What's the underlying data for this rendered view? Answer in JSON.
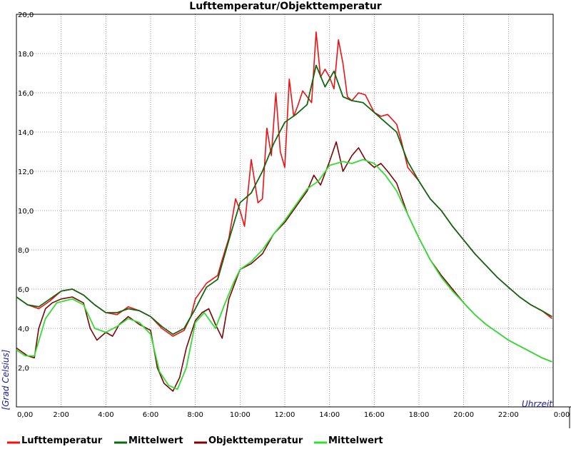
{
  "colors": {
    "luft": "#ee1111",
    "mittel_luft": "#116611",
    "objekt": "#7a0505",
    "mittel_objekt": "#33dd33",
    "axis_label": "#1a1aa0"
  },
  "chart_data": {
    "type": "line",
    "title": "Lufttemperatur/Objekttemperatur",
    "xlabel": "Uhrzeit",
    "ylabel": "[Grad Celsius]",
    "xlim": [
      0,
      24
    ],
    "ylim": [
      0,
      20
    ],
    "x_ticks": [
      "0,00",
      "2:00",
      "4:00",
      "6:00",
      "8:00",
      "10:00",
      "12:00",
      "14:00",
      "16:00",
      "18:00",
      "20:00",
      "22:00",
      "0:00"
    ],
    "y_ticks": [
      "2,0",
      "4,0",
      "6,0",
      "8,0",
      "10,0",
      "12,0",
      "14,0",
      "16,0",
      "18,0",
      "20,0"
    ],
    "grid": true,
    "legend_position": "bottom",
    "series": [
      {
        "name": "Lufttemperatur",
        "color": "#ee1111",
        "x": [
          0,
          0.5,
          1,
          1.5,
          2,
          2.5,
          3,
          3.5,
          4,
          4.5,
          5,
          5.5,
          6,
          6.5,
          7,
          7.5,
          7.8,
          8,
          8.5,
          9,
          9.2,
          9.5,
          9.8,
          10,
          10.2,
          10.5,
          10.8,
          11,
          11.2,
          11.4,
          11.6,
          11.8,
          12,
          12.2,
          12.4,
          12.6,
          12.8,
          13,
          13.2,
          13.4,
          13.6,
          13.8,
          14,
          14.2,
          14.4,
          14.6,
          14.8,
          15,
          15.3,
          15.6,
          16,
          16.3,
          16.6,
          17,
          17.2,
          17.5,
          18,
          18.5,
          19,
          19.5,
          20,
          20.5,
          21,
          21.5,
          22,
          22.5,
          23,
          23.5,
          23.95
        ],
        "values": [
          5.6,
          5.2,
          5.0,
          5.4,
          5.9,
          6.0,
          5.7,
          5.2,
          4.8,
          4.7,
          5.1,
          4.9,
          4.6,
          4.0,
          3.6,
          3.9,
          4.6,
          5.5,
          6.3,
          6.7,
          7.5,
          8.6,
          10.6,
          10.0,
          9.2,
          12.6,
          10.4,
          10.6,
          14.2,
          12.8,
          16.0,
          13.0,
          12.2,
          16.7,
          14.8,
          15.4,
          16.1,
          15.8,
          15.5,
          19.1,
          16.8,
          17.2,
          16.8,
          16.2,
          18.7,
          17.5,
          15.8,
          15.6,
          16.0,
          15.9,
          15.0,
          14.8,
          14.9,
          14.4,
          13.6,
          12.2,
          11.5,
          10.6,
          10.0,
          9.2,
          8.5,
          7.8,
          7.2,
          6.6,
          6.1,
          5.6,
          5.2,
          4.9,
          4.5
        ]
      },
      {
        "name": "Mittelwert",
        "color": "#116611",
        "x": [
          0,
          0.5,
          1,
          1.5,
          2,
          2.5,
          3,
          3.5,
          4,
          4.5,
          5,
          5.5,
          6,
          6.5,
          7,
          7.5,
          8,
          8.5,
          9,
          9.5,
          10,
          10.5,
          11,
          11.5,
          12,
          12.5,
          13,
          13.4,
          13.8,
          14.2,
          14.6,
          15,
          15.5,
          16,
          16.5,
          17,
          17.5,
          18,
          18.5,
          19,
          19.5,
          20,
          20.5,
          21,
          21.5,
          22,
          22.5,
          23,
          23.5,
          23.95
        ],
        "values": [
          5.6,
          5.2,
          5.1,
          5.5,
          5.9,
          6.0,
          5.7,
          5.2,
          4.8,
          4.8,
          5.0,
          4.9,
          4.6,
          4.1,
          3.7,
          4.0,
          5.0,
          6.1,
          6.5,
          8.5,
          10.4,
          10.9,
          12.0,
          13.4,
          14.5,
          14.9,
          15.4,
          17.4,
          16.3,
          17.1,
          15.8,
          15.6,
          15.5,
          15.0,
          14.5,
          14.0,
          12.5,
          11.5,
          10.6,
          10.0,
          9.2,
          8.5,
          7.8,
          7.2,
          6.6,
          6.1,
          5.6,
          5.2,
          4.9,
          4.6
        ]
      },
      {
        "name": "Objekttemperatur",
        "color": "#7a0505",
        "x": [
          0,
          0.5,
          0.8,
          1,
          1.3,
          1.6,
          2,
          2.5,
          3,
          3.3,
          3.6,
          4,
          4.3,
          4.6,
          5,
          5.5,
          6,
          6.3,
          6.6,
          7,
          7.3,
          7.6,
          8,
          8.3,
          8.6,
          8.9,
          9.2,
          9.5,
          10,
          10.5,
          11,
          11.5,
          12,
          12.5,
          13,
          13.3,
          13.6,
          14,
          14.3,
          14.6,
          15,
          15.3,
          15.6,
          16,
          16.3,
          16.6,
          17,
          17.5,
          18,
          18.5,
          19,
          19.5,
          20,
          20.5,
          21,
          21.5,
          22,
          22.5,
          23,
          23.5,
          23.95
        ],
        "values": [
          3.0,
          2.6,
          2.5,
          4.0,
          5.0,
          5.3,
          5.5,
          5.6,
          5.3,
          4.0,
          3.4,
          3.8,
          3.6,
          4.2,
          4.6,
          4.2,
          3.9,
          2.0,
          1.2,
          0.8,
          1.5,
          3.0,
          4.4,
          4.8,
          5.0,
          4.2,
          3.5,
          5.5,
          7.0,
          7.3,
          7.8,
          8.8,
          9.4,
          10.2,
          11.0,
          11.8,
          11.3,
          12.5,
          13.5,
          12.0,
          12.8,
          13.2,
          12.6,
          12.2,
          12.4,
          12.0,
          11.4,
          9.8,
          8.6,
          7.5,
          6.7,
          6.0,
          5.3,
          4.7,
          4.2,
          3.8,
          3.4,
          3.1,
          2.8,
          2.5,
          2.3
        ]
      },
      {
        "name": "Mittelwert",
        "color": "#33dd33",
        "x": [
          0,
          0.4,
          0.8,
          1.3,
          1.8,
          2.5,
          3,
          3.5,
          4,
          4.5,
          5,
          5.5,
          6,
          6.4,
          6.8,
          7.2,
          7.6,
          8,
          8.4,
          8.9,
          9.3,
          9.7,
          10,
          10.5,
          11,
          11.5,
          12,
          12.5,
          13,
          13.5,
          14,
          14.3,
          14.6,
          15,
          15.5,
          16,
          16.5,
          17,
          17.5,
          18,
          18.5,
          19,
          19.5,
          20,
          20.5,
          21,
          21.5,
          22,
          22.5,
          23,
          23.5,
          23.95
        ],
        "values": [
          2.9,
          2.6,
          2.6,
          4.5,
          5.3,
          5.5,
          5.2,
          4.0,
          3.8,
          4.1,
          4.5,
          4.3,
          3.7,
          1.8,
          1.1,
          0.9,
          2.0,
          4.3,
          4.8,
          4.0,
          5.2,
          6.3,
          7.0,
          7.4,
          8.0,
          8.8,
          9.5,
          10.3,
          11.1,
          11.5,
          12.3,
          12.4,
          12.5,
          12.4,
          12.6,
          12.4,
          11.8,
          11.0,
          9.8,
          8.6,
          7.5,
          6.6,
          5.9,
          5.3,
          4.7,
          4.2,
          3.8,
          3.4,
          3.1,
          2.8,
          2.5,
          2.3
        ]
      }
    ]
  }
}
